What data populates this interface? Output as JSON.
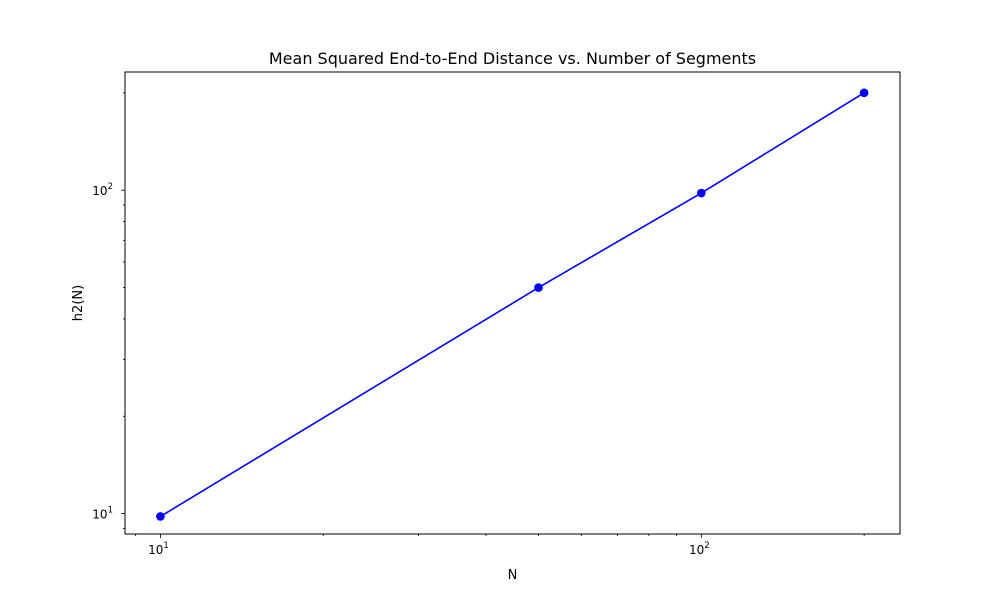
{
  "chart_data": {
    "type": "line",
    "title": "Mean Squared End-to-End Distance vs. Number of Segments",
    "xlabel": "N",
    "ylabel": "h2(N)",
    "x_scale": "log",
    "y_scale": "log",
    "xlim": [
      8.6,
      233
    ],
    "ylim": [
      8.65,
      232
    ],
    "grid": false,
    "x_major_ticks": [
      {
        "value": 10,
        "base": "10",
        "exp": "1"
      },
      {
        "value": 100,
        "base": "10",
        "exp": "2"
      }
    ],
    "y_major_ticks": [
      {
        "value": 10,
        "base": "10",
        "exp": "1"
      },
      {
        "value": 100,
        "base": "10",
        "exp": "2"
      }
    ],
    "series": [
      {
        "color": "#0000ff",
        "marker": "circle",
        "x": [
          10,
          50,
          100,
          200
        ],
        "y": [
          9.8,
          50,
          98,
          200
        ]
      }
    ]
  }
}
